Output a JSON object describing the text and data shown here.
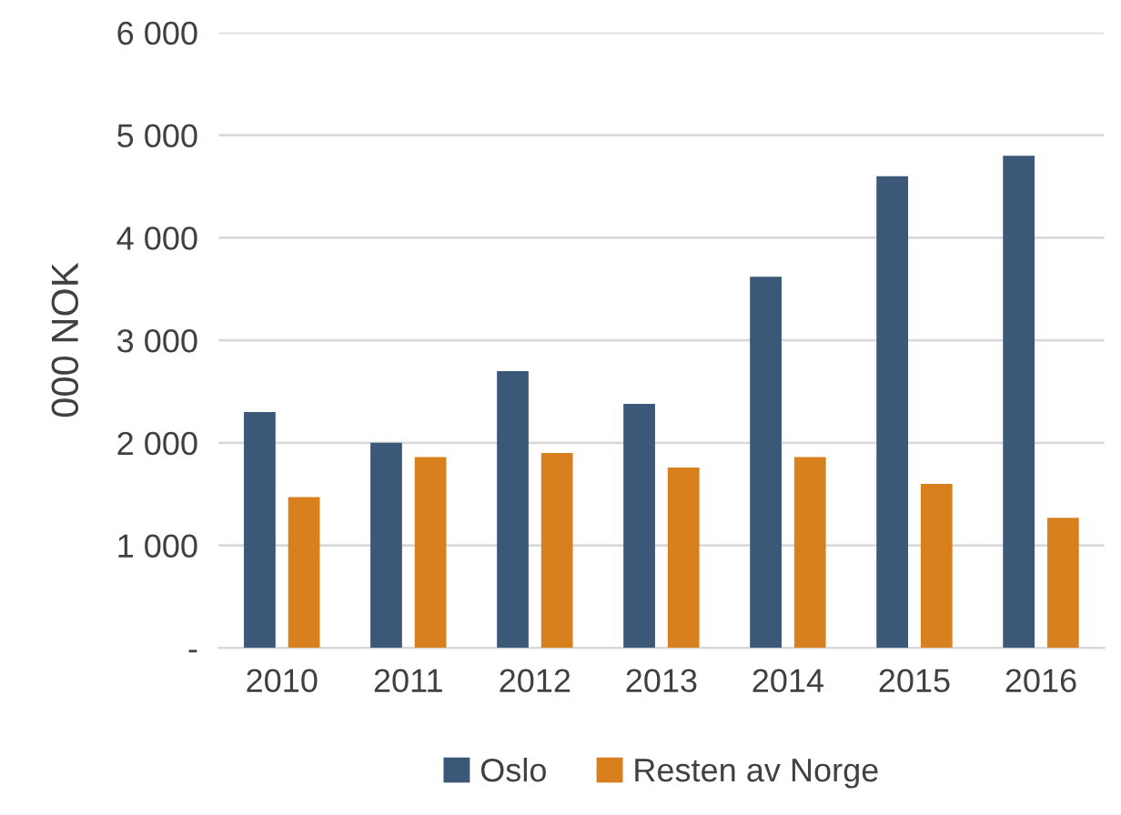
{
  "chart_data": {
    "type": "bar",
    "ylabel": "000 NOK",
    "categories": [
      "2010",
      "2011",
      "2012",
      "2013",
      "2014",
      "2015",
      "2016"
    ],
    "series": [
      {
        "name": "Oslo",
        "color": "#3b5878",
        "values": [
          2300,
          2000,
          2700,
          2380,
          3620,
          4600,
          4800
        ]
      },
      {
        "name": "Resten av Norge",
        "color": "#d9801e",
        "values": [
          1470,
          1860,
          1900,
          1760,
          1860,
          1600,
          1270
        ]
      }
    ],
    "ylim": [
      0,
      6000
    ],
    "yticks": [
      {
        "value": 0,
        "label": "-"
      },
      {
        "value": 1000,
        "label": "1 000"
      },
      {
        "value": 2000,
        "label": "2 000"
      },
      {
        "value": 3000,
        "label": "3 000"
      },
      {
        "value": 4000,
        "label": "4 000"
      },
      {
        "value": 5000,
        "label": "5 000"
      },
      {
        "value": 6000,
        "label": "6 000"
      }
    ],
    "grid": "y",
    "legend": "bottom"
  }
}
